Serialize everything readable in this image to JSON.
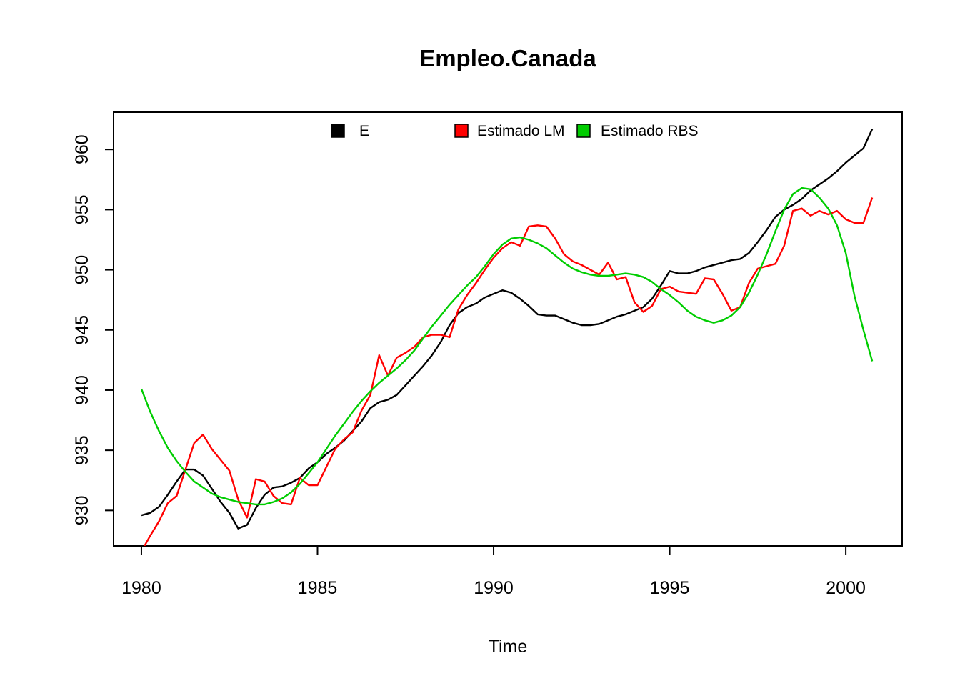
{
  "chart_data": {
    "type": "line",
    "title": "Empleo.Canada",
    "xlabel": "Time",
    "ylabel": "",
    "grid": false,
    "legend_position": "top-inside",
    "xlim": [
      1979.21,
      2001.6
    ],
    "ylim": [
      927.05,
      963.1
    ],
    "xticks": [
      1980,
      1985,
      1990,
      1995,
      2000
    ],
    "yticks": [
      930,
      935,
      940,
      945,
      950,
      955,
      960
    ],
    "x": [
      1980,
      1980.25,
      1980.5,
      1980.75,
      1981,
      1981.25,
      1981.5,
      1981.75,
      1982,
      1982.25,
      1982.5,
      1982.75,
      1983,
      1983.25,
      1983.5,
      1983.75,
      1984,
      1984.25,
      1984.5,
      1984.75,
      1985,
      1985.25,
      1985.5,
      1985.75,
      1986,
      1986.25,
      1986.5,
      1986.75,
      1987,
      1987.25,
      1987.5,
      1987.75,
      1988,
      1988.25,
      1988.5,
      1988.75,
      1989,
      1989.25,
      1989.5,
      1989.75,
      1990,
      1990.25,
      1990.5,
      1990.75,
      1991,
      1991.25,
      1991.5,
      1991.75,
      1992,
      1992.25,
      1992.5,
      1992.75,
      1993,
      1993.25,
      1993.5,
      1993.75,
      1994,
      1994.25,
      1994.5,
      1994.75,
      1995,
      1995.25,
      1995.5,
      1995.75,
      1996,
      1996.25,
      1996.5,
      1996.75,
      1997,
      1997.25,
      1997.5,
      1997.75,
      1998,
      1998.25,
      1998.5,
      1998.75,
      1999,
      1999.25,
      1999.5,
      1999.75,
      2000,
      2000.25,
      2000.5,
      2000.75
    ],
    "series": [
      {
        "name": "E",
        "color": "#000000",
        "values": [
          929.6,
          929.8,
          930.3,
          931.3,
          932.4,
          933.4,
          933.4,
          932.9,
          931.8,
          930.7,
          929.8,
          928.5,
          928.8,
          930.2,
          931.3,
          931.9,
          932.0,
          932.3,
          932.7,
          933.5,
          934.0,
          934.7,
          935.2,
          935.8,
          936.6,
          937.4,
          938.5,
          939.0,
          939.2,
          939.6,
          940.4,
          941.2,
          942.0,
          942.9,
          944.0,
          945.4,
          946.4,
          946.9,
          947.2,
          947.7,
          948.0,
          948.3,
          948.1,
          947.6,
          947.0,
          946.3,
          946.2,
          946.2,
          945.9,
          945.6,
          945.4,
          945.4,
          945.5,
          945.8,
          946.1,
          946.3,
          946.6,
          946.9,
          947.6,
          948.7,
          949.9,
          949.7,
          949.7,
          949.9,
          950.2,
          950.4,
          950.6,
          950.8,
          950.9,
          951.4,
          952.3,
          953.3,
          954.4,
          955.0,
          955.4,
          955.9,
          956.6,
          957.1,
          957.6,
          958.2,
          958.9,
          959.5,
          960.1,
          961.7
        ]
      },
      {
        "name": "Estimado LM",
        "color": "#FF0000",
        "values": [
          926.6,
          927.9,
          929.1,
          930.6,
          931.2,
          933.4,
          935.6,
          936.3,
          935.1,
          934.2,
          933.3,
          930.9,
          929.4,
          932.6,
          932.4,
          931.2,
          930.6,
          930.5,
          932.7,
          932.1,
          932.1,
          933.6,
          935.1,
          935.9,
          936.5,
          938.3,
          939.6,
          942.9,
          941.2,
          942.7,
          943.1,
          943.6,
          944.4,
          944.6,
          944.6,
          944.4,
          946.7,
          947.9,
          948.9,
          950.0,
          951.0,
          951.8,
          952.3,
          952.0,
          953.6,
          953.7,
          953.6,
          952.6,
          951.3,
          950.7,
          950.4,
          950.0,
          949.6,
          950.6,
          949.2,
          949.4,
          947.3,
          946.5,
          947.0,
          948.4,
          948.6,
          948.2,
          948.1,
          948.0,
          949.3,
          949.2,
          948.0,
          946.6,
          946.9,
          948.9,
          950.1,
          950.3,
          950.5,
          952.0,
          954.9,
          955.1,
          954.5,
          954.9,
          954.6,
          954.9,
          954.2,
          953.9,
          953.9,
          956.0
        ]
      },
      {
        "name": "Estimado RBS",
        "color": "#00CD00",
        "values": [
          940.1,
          938.2,
          936.6,
          935.2,
          934.1,
          933.2,
          932.4,
          931.9,
          931.4,
          931.1,
          930.9,
          930.7,
          930.6,
          930.5,
          930.5,
          930.7,
          931.0,
          931.5,
          932.2,
          933.1,
          934.0,
          935.1,
          936.2,
          937.2,
          938.2,
          939.1,
          939.9,
          940.6,
          941.2,
          941.8,
          942.5,
          943.3,
          944.3,
          945.3,
          946.2,
          947.1,
          947.9,
          948.7,
          949.4,
          950.3,
          951.3,
          952.1,
          952.6,
          952.7,
          952.5,
          952.2,
          951.8,
          951.2,
          950.6,
          950.1,
          949.8,
          949.6,
          949.5,
          949.5,
          949.6,
          949.7,
          949.6,
          949.4,
          949.0,
          948.4,
          947.9,
          947.3,
          946.6,
          946.1,
          945.8,
          945.6,
          945.8,
          946.2,
          946.9,
          948.1,
          949.6,
          951.3,
          953.2,
          955.0,
          956.3,
          956.8,
          956.7,
          956.0,
          955.1,
          953.7,
          951.4,
          947.8,
          945.0,
          942.4
        ]
      }
    ]
  }
}
